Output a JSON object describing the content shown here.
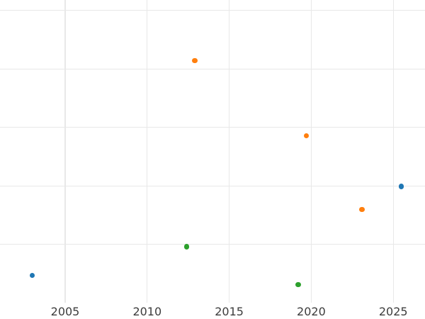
{
  "style": {
    "background": "#ffffff",
    "grid_color": "#e8e8e8",
    "tick_label_color": "#3c3c3c"
  },
  "chart_data": {
    "type": "scatter",
    "title": "",
    "xlabel": "",
    "ylabel": "",
    "x_tick_labels": [
      "2005",
      "2010",
      "2015",
      "2020",
      "2025"
    ],
    "x_ticks": [
      2005,
      2010,
      2015,
      2020,
      2025
    ],
    "xlim": [
      2001.0,
      2026.9
    ],
    "ylim": [
      -1.0,
      4.18
    ],
    "grid": true,
    "legend": false,
    "y_axis_note": "no y tick labels visible in image; y expressed in gridline units, 0 = lowest visible horizontal gridline, 1 unit = one gridline spacing",
    "y_gridline_units": [
      0,
      1,
      2,
      3,
      4
    ],
    "series": [
      {
        "name": "blue",
        "color": "#1f77b4",
        "points": [
          {
            "x": 2003.0,
            "y": -0.53
          },
          {
            "x": 2025.5,
            "y": 0.99
          }
        ]
      },
      {
        "name": "orange",
        "color": "#ff7f0e",
        "points": [
          {
            "x": 2012.9,
            "y": 3.14
          },
          {
            "x": 2019.7,
            "y": 1.86
          },
          {
            "x": 2023.1,
            "y": 0.6
          }
        ]
      },
      {
        "name": "green",
        "color": "#2ca02c",
        "points": [
          {
            "x": 2012.4,
            "y": -0.04
          },
          {
            "x": 2019.2,
            "y": -0.69
          }
        ]
      }
    ]
  }
}
